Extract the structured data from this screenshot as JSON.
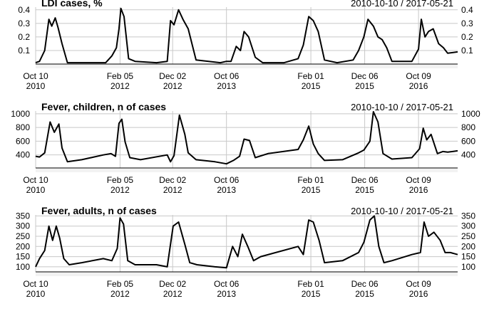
{
  "chart_data": [
    {
      "type": "line",
      "title": "LDI cases, %",
      "date_range": "2010-10-10 / 2017-05-21",
      "ylim": [
        0,
        0.42
      ],
      "yticks": [
        "0.1",
        "0.2",
        "0.3",
        "0.4"
      ],
      "ytick_values": [
        0.1,
        0.2,
        0.3,
        0.4
      ],
      "grid": true,
      "x_axis": [
        "2010-10-10",
        "2012-02-05",
        "2012-12-02",
        "2013-10-06",
        "2015-02-01",
        "2015-12-06",
        "2016-10-09"
      ],
      "x_tick_labels": [
        [
          "Oct 10",
          "2010"
        ],
        [
          "Feb 05",
          "2012"
        ],
        [
          "Dec 02",
          "2012"
        ],
        [
          "Oct 06",
          "2013"
        ],
        [
          "Feb 01",
          "2015"
        ],
        [
          "Dec 06",
          "2015"
        ],
        [
          "Oct 09",
          "2016"
        ]
      ],
      "series": [
        {
          "x": [
            "2010-10-10",
            "2010-11-01",
            "2010-12-01",
            "2010-12-25",
            "2011-01-10",
            "2011-01-30",
            "2011-02-15",
            "2011-03-10",
            "2011-04-10",
            "2011-06-01",
            "2011-10-01",
            "2011-11-15",
            "2011-12-20",
            "2012-01-15",
            "2012-01-30",
            "2012-02-10",
            "2012-02-28",
            "2012-03-25",
            "2012-05-01",
            "2012-09-01",
            "2012-11-01",
            "2012-11-20",
            "2012-12-10",
            "2013-01-05",
            "2013-01-30",
            "2013-03-01",
            "2013-04-15",
            "2013-09-01",
            "2013-10-06",
            "2013-11-01",
            "2013-12-01",
            "2013-12-25",
            "2014-01-15",
            "2014-02-10",
            "2014-03-20",
            "2014-05-01",
            "2014-09-01",
            "2014-11-20",
            "2014-12-20",
            "2015-01-20",
            "2015-02-15",
            "2015-03-15",
            "2015-04-20",
            "2015-07-01",
            "2015-10-01",
            "2015-11-01",
            "2015-12-01",
            "2015-12-25",
            "2016-01-25",
            "2016-02-20",
            "2016-03-15",
            "2016-04-10",
            "2016-05-10",
            "2016-09-01",
            "2016-10-09",
            "2016-10-25",
            "2016-11-15",
            "2016-12-05",
            "2017-01-01",
            "2017-02-01",
            "2017-03-01",
            "2017-03-25",
            "2017-05-21"
          ],
          "y": [
            0.01,
            0.02,
            0.1,
            0.33,
            0.28,
            0.34,
            0.27,
            0.15,
            0.01,
            0.01,
            0.01,
            0.01,
            0.06,
            0.12,
            0.26,
            0.41,
            0.35,
            0.04,
            0.02,
            0.01,
            0.02,
            0.32,
            0.29,
            0.4,
            0.33,
            0.26,
            0.03,
            0.01,
            0.02,
            0.02,
            0.13,
            0.1,
            0.24,
            0.2,
            0.05,
            0.01,
            0.01,
            0.04,
            0.14,
            0.35,
            0.32,
            0.24,
            0.03,
            0.01,
            0.03,
            0.1,
            0.2,
            0.33,
            0.28,
            0.2,
            0.18,
            0.12,
            0.02,
            0.02,
            0.11,
            0.33,
            0.2,
            0.24,
            0.26,
            0.15,
            0.12,
            0.08,
            0.09
          ]
        }
      ]
    },
    {
      "type": "line",
      "title": "Fever, children, n of cases",
      "date_range": "2010-10-10 / 2017-05-21",
      "ylim": [
        210,
        1040
      ],
      "yticks": [
        "400",
        "600",
        "800",
        "1000"
      ],
      "ytick_values": [
        400,
        600,
        800,
        1000
      ],
      "grid": true,
      "x_axis": [
        "2010-10-10",
        "2012-02-05",
        "2012-12-02",
        "2013-10-06",
        "2015-02-01",
        "2015-12-06",
        "2016-10-09"
      ],
      "x_tick_labels": [
        [
          "Oct 10",
          "2010"
        ],
        [
          "Feb 05",
          "2012"
        ],
        [
          "Dec 02",
          "2012"
        ],
        [
          "Oct 06",
          "2013"
        ],
        [
          "Feb 01",
          "2015"
        ],
        [
          "Dec 06",
          "2015"
        ],
        [
          "Oct 09",
          "2016"
        ]
      ],
      "series": [
        {
          "x": [
            "2010-10-10",
            "2010-11-01",
            "2010-12-01",
            "2011-01-01",
            "2011-01-25",
            "2011-02-20",
            "2011-03-10",
            "2011-04-10",
            "2011-07-01",
            "2011-11-01",
            "2011-12-15",
            "2012-01-10",
            "2012-01-30",
            "2012-02-15",
            "2012-03-05",
            "2012-04-01",
            "2012-06-01",
            "2012-11-01",
            "2012-11-20",
            "2012-12-10",
            "2013-01-10",
            "2013-02-10",
            "2013-03-01",
            "2013-04-15",
            "2013-08-01",
            "2013-10-06",
            "2013-11-15",
            "2013-12-20",
            "2014-01-15",
            "2014-02-15",
            "2014-03-20",
            "2014-06-01",
            "2014-11-20",
            "2014-12-20",
            "2015-01-20",
            "2015-02-15",
            "2015-03-15",
            "2015-04-20",
            "2015-08-01",
            "2015-11-01",
            "2015-12-01",
            "2016-01-05",
            "2016-01-25",
            "2016-02-20",
            "2016-03-20",
            "2016-05-10",
            "2016-09-01",
            "2016-10-15",
            "2016-11-05",
            "2016-11-25",
            "2016-12-20",
            "2017-01-25",
            "2017-02-25",
            "2017-03-25",
            "2017-05-21"
          ],
          "y": [
            380,
            370,
            430,
            880,
            730,
            850,
            500,
            300,
            330,
            400,
            420,
            380,
            860,
            920,
            590,
            360,
            330,
            400,
            300,
            390,
            980,
            700,
            430,
            330,
            300,
            270,
            320,
            380,
            630,
            610,
            360,
            420,
            480,
            620,
            820,
            560,
            420,
            320,
            330,
            430,
            470,
            600,
            1030,
            880,
            420,
            340,
            360,
            490,
            790,
            620,
            700,
            420,
            450,
            440,
            460
          ]
        }
      ]
    },
    {
      "type": "line",
      "title": "Fever, adults, n of cases",
      "date_range": "2010-10-10 / 2017-05-21",
      "ylim": [
        75,
        355
      ],
      "yticks": [
        "100",
        "150",
        "200",
        "250",
        "300",
        "350"
      ],
      "ytick_values": [
        100,
        150,
        200,
        250,
        300,
        350
      ],
      "grid": true,
      "x_axis": [
        "2010-10-10",
        "2012-02-05",
        "2012-12-02",
        "2013-10-06",
        "2015-02-01",
        "2015-12-06",
        "2016-10-09"
      ],
      "x_tick_labels": [
        [
          "Oct 10",
          "2010"
        ],
        [
          "Feb 05",
          "2012"
        ],
        [
          "Dec 02",
          "2012"
        ],
        [
          "Oct 06",
          "2013"
        ],
        [
          "Feb 01",
          "2015"
        ],
        [
          "Dec 06",
          "2015"
        ],
        [
          "Oct 09",
          "2016"
        ]
      ],
      "series": [
        {
          "x": [
            "2010-10-10",
            "2010-11-01",
            "2010-12-01",
            "2010-12-25",
            "2011-01-15",
            "2011-02-05",
            "2011-02-25",
            "2011-03-20",
            "2011-04-20",
            "2011-07-01",
            "2011-11-01",
            "2011-12-20",
            "2012-01-20",
            "2012-02-05",
            "2012-02-25",
            "2012-03-20",
            "2012-05-01",
            "2012-09-01",
            "2012-11-01",
            "2012-12-05",
            "2013-01-05",
            "2013-02-10",
            "2013-03-10",
            "2013-04-20",
            "2013-08-01",
            "2013-10-06",
            "2013-11-10",
            "2013-12-10",
            "2014-01-05",
            "2014-02-05",
            "2014-03-10",
            "2014-04-20",
            "2014-11-20",
            "2014-12-20",
            "2015-01-20",
            "2015-02-15",
            "2015-03-20",
            "2015-04-20",
            "2015-08-01",
            "2015-11-01",
            "2015-12-01",
            "2016-01-05",
            "2016-01-30",
            "2016-02-25",
            "2016-03-25",
            "2016-05-10",
            "2016-09-01",
            "2016-10-20",
            "2016-11-10",
            "2016-12-05",
            "2017-01-05",
            "2017-02-10",
            "2017-03-10",
            "2017-04-10",
            "2017-05-21"
          ],
          "y": [
            100,
            140,
            180,
            300,
            230,
            300,
            240,
            140,
            110,
            120,
            140,
            130,
            190,
            340,
            310,
            130,
            110,
            110,
            100,
            300,
            320,
            210,
            120,
            110,
            100,
            95,
            200,
            150,
            260,
            200,
            130,
            150,
            200,
            160,
            330,
            320,
            230,
            120,
            130,
            170,
            220,
            330,
            350,
            200,
            120,
            130,
            160,
            170,
            320,
            250,
            270,
            230,
            170,
            170,
            160
          ]
        }
      ]
    }
  ]
}
